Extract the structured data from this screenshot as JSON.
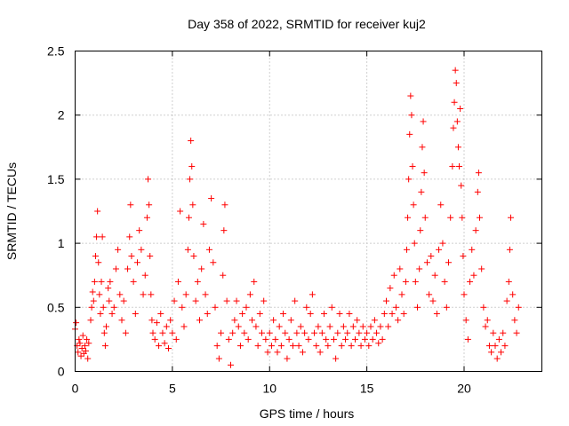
{
  "chart_data": {
    "type": "scatter",
    "title": "Day 358 of 2022, SRMTID for receiver kuj2",
    "xlabel": "GPS time / hours",
    "ylabel": "SRMTID / TECUs",
    "xlim": [
      0,
      24
    ],
    "ylim": [
      0,
      2.5
    ],
    "xticks": [
      0,
      5,
      10,
      15,
      20
    ],
    "xtick_labels": [
      "0",
      "5",
      "10",
      "15",
      "20"
    ],
    "yticks": [
      0,
      0.5,
      1,
      1.5,
      2,
      2.5
    ],
    "ytick_labels": [
      "0",
      "0.5",
      "1",
      "1.5",
      "2",
      "2.5"
    ],
    "grid": true,
    "marker": "+",
    "color": "#ff0000",
    "series": [
      {
        "name": "SRMTID",
        "points": [
          [
            0.0,
            0.33
          ],
          [
            0.05,
            0.38
          ],
          [
            0.1,
            0.2
          ],
          [
            0.15,
            0.15
          ],
          [
            0.2,
            0.25
          ],
          [
            0.25,
            0.22
          ],
          [
            0.3,
            0.12
          ],
          [
            0.35,
            0.18
          ],
          [
            0.4,
            0.28
          ],
          [
            0.45,
            0.14
          ],
          [
            0.5,
            0.2
          ],
          [
            0.55,
            0.16
          ],
          [
            0.6,
            0.25
          ],
          [
            0.65,
            0.1
          ],
          [
            0.7,
            0.22
          ],
          [
            0.8,
            0.4
          ],
          [
            0.85,
            0.5
          ],
          [
            0.9,
            0.62
          ],
          [
            0.95,
            0.55
          ],
          [
            1.0,
            0.7
          ],
          [
            1.05,
            0.9
          ],
          [
            1.1,
            1.05
          ],
          [
            1.15,
            1.25
          ],
          [
            1.2,
            0.85
          ],
          [
            1.25,
            0.6
          ],
          [
            1.3,
            0.45
          ],
          [
            1.35,
            0.7
          ],
          [
            1.4,
            1.05
          ],
          [
            1.45,
            0.5
          ],
          [
            1.5,
            0.3
          ],
          [
            1.55,
            0.2
          ],
          [
            1.6,
            0.35
          ],
          [
            1.7,
            0.65
          ],
          [
            1.75,
            0.55
          ],
          [
            1.8,
            0.7
          ],
          [
            1.9,
            0.45
          ],
          [
            2.0,
            0.5
          ],
          [
            2.1,
            0.8
          ],
          [
            2.2,
            0.95
          ],
          [
            2.3,
            0.6
          ],
          [
            2.4,
            0.4
          ],
          [
            2.5,
            0.55
          ],
          [
            2.6,
            0.3
          ],
          [
            2.7,
            0.8
          ],
          [
            2.8,
            1.05
          ],
          [
            2.85,
            1.3
          ],
          [
            2.9,
            0.9
          ],
          [
            3.0,
            0.7
          ],
          [
            3.1,
            0.45
          ],
          [
            3.2,
            0.85
          ],
          [
            3.3,
            1.1
          ],
          [
            3.4,
            0.95
          ],
          [
            3.5,
            0.6
          ],
          [
            3.6,
            0.75
          ],
          [
            3.7,
            1.2
          ],
          [
            3.75,
            1.5
          ],
          [
            3.8,
            1.3
          ],
          [
            3.85,
            0.9
          ],
          [
            3.9,
            0.6
          ],
          [
            3.95,
            0.4
          ],
          [
            4.0,
            0.3
          ],
          [
            4.1,
            0.25
          ],
          [
            4.2,
            0.38
          ],
          [
            4.3,
            0.2
          ],
          [
            4.4,
            0.45
          ],
          [
            4.5,
            0.3
          ],
          [
            4.6,
            0.22
          ],
          [
            4.7,
            0.35
          ],
          [
            4.8,
            0.18
          ],
          [
            4.9,
            0.4
          ],
          [
            5.0,
            0.3
          ],
          [
            5.1,
            0.55
          ],
          [
            5.2,
            0.25
          ],
          [
            5.3,
            0.7
          ],
          [
            5.4,
            1.25
          ],
          [
            5.5,
            0.5
          ],
          [
            5.6,
            0.35
          ],
          [
            5.7,
            0.6
          ],
          [
            5.8,
            0.95
          ],
          [
            5.85,
            1.2
          ],
          [
            5.9,
            1.5
          ],
          [
            5.95,
            1.8
          ],
          [
            6.0,
            1.6
          ],
          [
            6.05,
            1.3
          ],
          [
            6.1,
            0.9
          ],
          [
            6.2,
            0.55
          ],
          [
            6.3,
            0.7
          ],
          [
            6.4,
            0.4
          ],
          [
            6.5,
            0.8
          ],
          [
            6.6,
            1.15
          ],
          [
            6.7,
            0.6
          ],
          [
            6.8,
            0.45
          ],
          [
            6.9,
            0.95
          ],
          [
            7.0,
            1.35
          ],
          [
            7.1,
            0.85
          ],
          [
            7.2,
            0.5
          ],
          [
            7.3,
            0.2
          ],
          [
            7.4,
            0.1
          ],
          [
            7.5,
            0.3
          ],
          [
            7.6,
            0.75
          ],
          [
            7.65,
            1.1
          ],
          [
            7.7,
            1.3
          ],
          [
            7.8,
            0.55
          ],
          [
            7.9,
            0.25
          ],
          [
            8.0,
            0.05
          ],
          [
            8.1,
            0.3
          ],
          [
            8.2,
            0.4
          ],
          [
            8.3,
            0.55
          ],
          [
            8.4,
            0.35
          ],
          [
            8.5,
            0.2
          ],
          [
            8.6,
            0.45
          ],
          [
            8.7,
            0.3
          ],
          [
            8.8,
            0.5
          ],
          [
            8.9,
            0.25
          ],
          [
            9.0,
            0.6
          ],
          [
            9.1,
            0.4
          ],
          [
            9.2,
            0.7
          ],
          [
            9.3,
            0.35
          ],
          [
            9.4,
            0.2
          ],
          [
            9.5,
            0.45
          ],
          [
            9.6,
            0.3
          ],
          [
            9.7,
            0.55
          ],
          [
            9.8,
            0.25
          ],
          [
            9.9,
            0.15
          ],
          [
            10.0,
            0.3
          ],
          [
            10.1,
            0.2
          ],
          [
            10.2,
            0.4
          ],
          [
            10.3,
            0.25
          ],
          [
            10.4,
            0.15
          ],
          [
            10.5,
            0.35
          ],
          [
            10.6,
            0.2
          ],
          [
            10.7,
            0.45
          ],
          [
            10.8,
            0.3
          ],
          [
            10.9,
            0.1
          ],
          [
            11.0,
            0.25
          ],
          [
            11.1,
            0.4
          ],
          [
            11.2,
            0.2
          ],
          [
            11.3,
            0.55
          ],
          [
            11.4,
            0.3
          ],
          [
            11.5,
            0.2
          ],
          [
            11.6,
            0.35
          ],
          [
            11.7,
            0.15
          ],
          [
            11.8,
            0.3
          ],
          [
            11.9,
            0.5
          ],
          [
            12.0,
            0.25
          ],
          [
            12.1,
            0.45
          ],
          [
            12.2,
            0.6
          ],
          [
            12.3,
            0.3
          ],
          [
            12.4,
            0.2
          ],
          [
            12.5,
            0.35
          ],
          [
            12.6,
            0.15
          ],
          [
            12.7,
            0.3
          ],
          [
            12.8,
            0.45
          ],
          [
            12.9,
            0.25
          ],
          [
            13.0,
            0.2
          ],
          [
            13.1,
            0.35
          ],
          [
            13.2,
            0.5
          ],
          [
            13.3,
            0.25
          ],
          [
            13.4,
            0.1
          ],
          [
            13.5,
            0.3
          ],
          [
            13.6,
            0.45
          ],
          [
            13.7,
            0.2
          ],
          [
            13.8,
            0.35
          ],
          [
            13.9,
            0.25
          ],
          [
            14.0,
            0.3
          ],
          [
            14.1,
            0.45
          ],
          [
            14.2,
            0.2
          ],
          [
            14.3,
            0.35
          ],
          [
            14.4,
            0.25
          ],
          [
            14.5,
            0.4
          ],
          [
            14.6,
            0.3
          ],
          [
            14.7,
            0.2
          ],
          [
            14.8,
            0.35
          ],
          [
            14.9,
            0.25
          ],
          [
            15.0,
            0.3
          ],
          [
            15.1,
            0.2
          ],
          [
            15.2,
            0.35
          ],
          [
            15.3,
            0.25
          ],
          [
            15.4,
            0.4
          ],
          [
            15.5,
            0.3
          ],
          [
            15.6,
            0.22
          ],
          [
            15.7,
            0.35
          ],
          [
            15.8,
            0.25
          ],
          [
            15.9,
            0.45
          ],
          [
            16.0,
            0.55
          ],
          [
            16.1,
            0.35
          ],
          [
            16.2,
            0.65
          ],
          [
            16.3,
            0.45
          ],
          [
            16.4,
            0.75
          ],
          [
            16.5,
            0.5
          ],
          [
            16.6,
            0.4
          ],
          [
            16.7,
            0.8
          ],
          [
            16.8,
            0.6
          ],
          [
            16.9,
            0.45
          ],
          [
            17.0,
            0.7
          ],
          [
            17.05,
            0.95
          ],
          [
            17.1,
            1.2
          ],
          [
            17.15,
            1.5
          ],
          [
            17.2,
            1.85
          ],
          [
            17.25,
            2.15
          ],
          [
            17.3,
            2.0
          ],
          [
            17.35,
            1.6
          ],
          [
            17.4,
            1.3
          ],
          [
            17.45,
            1.0
          ],
          [
            17.5,
            0.7
          ],
          [
            17.6,
            0.5
          ],
          [
            17.7,
            0.8
          ],
          [
            17.75,
            1.1
          ],
          [
            17.8,
            1.4
          ],
          [
            17.85,
            1.75
          ],
          [
            17.9,
            1.95
          ],
          [
            17.95,
            1.55
          ],
          [
            18.0,
            1.2
          ],
          [
            18.1,
            0.85
          ],
          [
            18.2,
            0.6
          ],
          [
            18.3,
            0.9
          ],
          [
            18.4,
            0.55
          ],
          [
            18.5,
            0.75
          ],
          [
            18.6,
            0.45
          ],
          [
            18.7,
            0.95
          ],
          [
            18.8,
            1.3
          ],
          [
            18.9,
            1.0
          ],
          [
            19.0,
            0.7
          ],
          [
            19.1,
            0.5
          ],
          [
            19.2,
            0.85
          ],
          [
            19.3,
            1.2
          ],
          [
            19.4,
            1.6
          ],
          [
            19.45,
            1.9
          ],
          [
            19.5,
            2.1
          ],
          [
            19.55,
            2.35
          ],
          [
            19.6,
            2.25
          ],
          [
            19.65,
            1.95
          ],
          [
            19.7,
            1.75
          ],
          [
            19.75,
            1.6
          ],
          [
            19.8,
            2.05
          ],
          [
            19.85,
            1.45
          ],
          [
            19.9,
            1.2
          ],
          [
            19.95,
            0.9
          ],
          [
            20.0,
            0.6
          ],
          [
            20.1,
            0.4
          ],
          [
            20.2,
            0.25
          ],
          [
            20.3,
            0.7
          ],
          [
            20.4,
            0.95
          ],
          [
            20.5,
            0.75
          ],
          [
            20.6,
            1.1
          ],
          [
            20.7,
            1.4
          ],
          [
            20.75,
            1.55
          ],
          [
            20.8,
            1.2
          ],
          [
            20.9,
            0.8
          ],
          [
            21.0,
            0.5
          ],
          [
            21.1,
            0.35
          ],
          [
            21.2,
            0.4
          ],
          [
            21.3,
            0.2
          ],
          [
            21.4,
            0.15
          ],
          [
            21.5,
            0.3
          ],
          [
            21.6,
            0.2
          ],
          [
            21.7,
            0.1
          ],
          [
            21.8,
            0.25
          ],
          [
            21.9,
            0.15
          ],
          [
            22.0,
            0.3
          ],
          [
            22.1,
            0.2
          ],
          [
            22.2,
            0.55
          ],
          [
            22.3,
            0.7
          ],
          [
            22.35,
            0.95
          ],
          [
            22.4,
            1.2
          ],
          [
            22.5,
            0.6
          ],
          [
            22.6,
            0.4
          ],
          [
            22.7,
            0.3
          ],
          [
            22.8,
            0.5
          ]
        ]
      }
    ]
  }
}
